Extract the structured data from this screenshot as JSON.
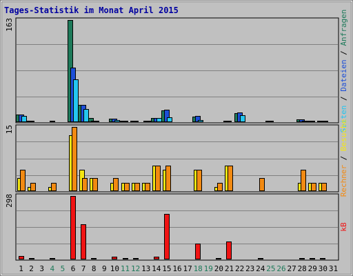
{
  "chart_data": {
    "type": "bar",
    "title": "Tages-Statistik im Monat April 2015",
    "categories": [
      "1",
      "2",
      "3",
      "4",
      "5",
      "6",
      "7",
      "8",
      "9",
      "10",
      "11",
      "12",
      "13",
      "14",
      "15",
      "16",
      "17",
      "18",
      "19",
      "20",
      "21",
      "22",
      "23",
      "24",
      "25",
      "26",
      "27",
      "28",
      "29",
      "30",
      "31"
    ],
    "weekend_days": [
      4,
      5,
      11,
      12,
      18,
      19,
      25,
      26
    ],
    "colors": {
      "anfragen": "#1e7a5a",
      "dateien": "#1d4fd8",
      "seiten": "#24c6f0",
      "besuche": "#f5e613",
      "rechner": "#f28a12",
      "kb": "#f01414",
      "weekday_label": "#000000",
      "weekend_label": "#1e7a5a",
      "title": "#0000a0",
      "background": "#c0c0c0"
    },
    "panels": [
      {
        "id": "requests",
        "ymax": 163,
        "ymax_label": "163",
        "series": [
          {
            "name": "Anfragen",
            "color_key": "anfragen",
            "values": [
              12,
              1,
              0,
              0,
              0,
              163,
              27,
              7,
              0,
              6,
              2,
              2,
              0,
              7,
              19,
              0,
              0,
              9,
              0,
              0,
              1,
              14,
              0,
              0,
              2,
              0,
              0,
              4,
              1,
              1,
              0
            ]
          },
          {
            "name": "Dateien",
            "color_key": "dateien",
            "values": [
              12,
              1,
              0,
              1,
              0,
              87,
              28,
              2,
              0,
              6,
              1,
              2,
              2,
              7,
              20,
              0,
              0,
              10,
              0,
              0,
              1,
              15,
              0,
              0,
              2,
              0,
              0,
              4,
              1,
              1,
              0
            ]
          },
          {
            "name": "Seiten",
            "color_key": "seiten",
            "values": [
              10,
              0,
              0,
              0,
              0,
              68,
              21,
              2,
              0,
              3,
              0,
              0,
              2,
              7,
              8,
              0,
              0,
              3,
              0,
              0,
              0,
              11,
              0,
              0,
              0,
              0,
              0,
              2,
              0,
              1,
              0
            ]
          }
        ],
        "side_label": [
          {
            "text": "Seiten",
            "color_key": "seiten"
          },
          {
            "text": " / ",
            "color_key": "weekday_label"
          },
          {
            "text": "Dateien",
            "color_key": "dateien"
          },
          {
            "text": " / ",
            "color_key": "weekday_label"
          },
          {
            "text": "Anfragen",
            "color_key": "anfragen"
          }
        ]
      },
      {
        "id": "visits",
        "ymax": 15,
        "ymax_label": "15",
        "series": [
          {
            "name": "Besuche",
            "color_key": "besuche",
            "values": [
              3,
              1,
              0,
              1,
              0,
              13,
              5,
              3,
              0,
              2,
              2,
              2,
              2,
              6,
              5,
              0,
              0,
              5,
              0,
              1,
              6,
              0,
              0,
              0,
              0,
              0,
              0,
              2,
              2,
              2,
              0
            ]
          },
          {
            "name": "Rechner",
            "color_key": "rechner",
            "values": [
              5,
              2,
              0,
              2,
              0,
              15,
              3,
              3,
              0,
              3,
              2,
              2,
              2,
              6,
              6,
              0,
              0,
              5,
              0,
              2,
              6,
              0,
              0,
              3,
              0,
              0,
              0,
              5,
              2,
              2,
              0
            ]
          }
        ],
        "side_label": [
          {
            "text": "Rechner",
            "color_key": "rechner"
          },
          {
            "text": " / ",
            "color_key": "weekday_label"
          },
          {
            "text": "Besuche",
            "color_key": "besuche"
          }
        ]
      },
      {
        "id": "kb",
        "ymax": 298,
        "ymax_label": "298",
        "series": [
          {
            "name": "kB",
            "color_key": "kb",
            "values": [
              15,
              1,
              0,
              1,
              0,
              298,
              165,
              6,
              0,
              12,
              5,
              6,
              0,
              12,
              215,
              0,
              0,
              75,
              0,
              2,
              85,
              0,
              0,
              5,
              0,
              0,
              0,
              6,
              3,
              3,
              0
            ]
          }
        ],
        "side_label": [
          {
            "text": "kB",
            "color_key": "kb"
          }
        ]
      }
    ]
  }
}
